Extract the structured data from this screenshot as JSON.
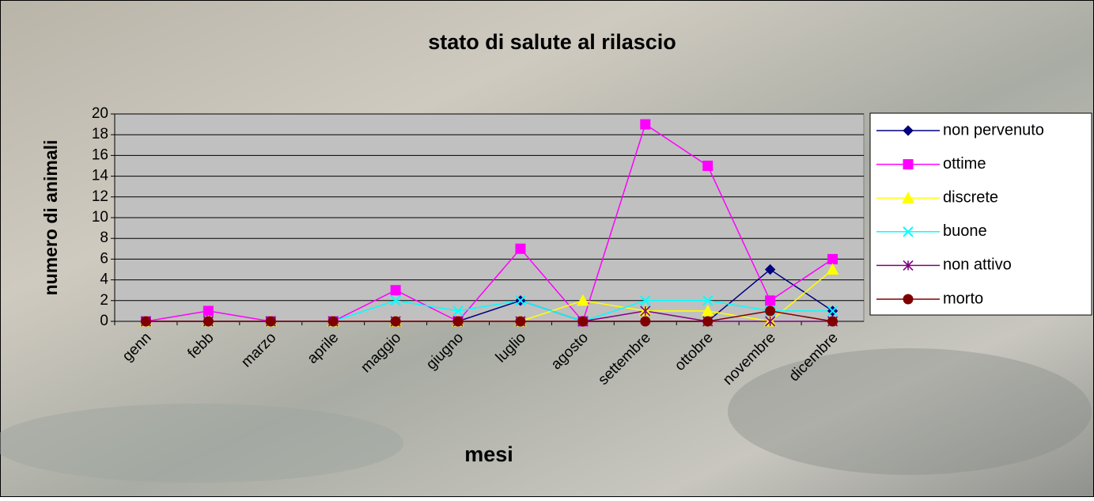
{
  "chart_data": {
    "type": "line",
    "title": "stato di salute al rilascio",
    "x_label": "mesi",
    "y_label": "numero di animali",
    "categories": [
      "genn",
      "febb",
      "marzo",
      "aprile",
      "maggio",
      "giugno",
      "luglio",
      "agosto",
      "settembre",
      "ottobre",
      "novembre",
      "dicembre"
    ],
    "series": [
      {
        "name": "non pervenuto",
        "color": "#000080",
        "marker": "diamond",
        "values": [
          0,
          0,
          0,
          0,
          0,
          0,
          2,
          0,
          0,
          0,
          5,
          1
        ]
      },
      {
        "name": "ottime",
        "color": "#ff00ff",
        "marker": "square",
        "values": [
          0,
          1,
          0,
          0,
          3,
          0,
          7,
          0,
          19,
          15,
          2,
          6
        ]
      },
      {
        "name": "discrete",
        "color": "#ffff00",
        "marker": "triangle",
        "values": [
          0,
          0,
          0,
          0,
          0,
          0,
          0,
          2,
          1,
          1,
          0,
          5
        ]
      },
      {
        "name": "buone",
        "color": "#00ffff",
        "marker": "x",
        "values": [
          0,
          0,
          0,
          0,
          2,
          1,
          2,
          0,
          2,
          2,
          1,
          1
        ]
      },
      {
        "name": "non attivo",
        "color": "#800080",
        "marker": "asterisk",
        "values": [
          0,
          0,
          0,
          0,
          0,
          0,
          0,
          0,
          1,
          0,
          0,
          0
        ]
      },
      {
        "name": "morto",
        "color": "#800000",
        "marker": "circle",
        "values": [
          0,
          0,
          0,
          0,
          0,
          0,
          0,
          0,
          0,
          0,
          1,
          0
        ]
      }
    ],
    "ylim": [
      0,
      20
    ],
    "yticks": [
      0,
      2,
      4,
      6,
      8,
      10,
      12,
      14,
      16,
      18,
      20
    ],
    "grid": true,
    "legend": "right"
  }
}
